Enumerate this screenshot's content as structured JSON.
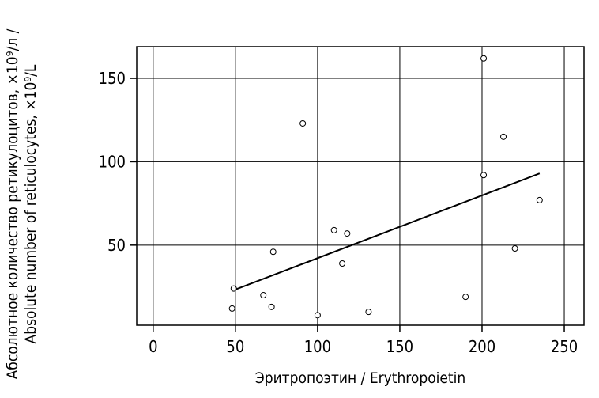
{
  "chart_data": {
    "type": "scatter",
    "title": "",
    "xlabel": "Эритропоэтин / Erythropoietin",
    "ylabel": [
      "Абсолютное количество ретикулоцитов, ×10⁹/л /",
      "Absolute number of reticulocytes, ×10⁹/L"
    ],
    "xlim": [
      -10,
      262
    ],
    "ylim": [
      2,
      169
    ],
    "xticks": [
      0,
      50,
      100,
      150,
      200,
      250
    ],
    "yticks": [
      50,
      100,
      150
    ],
    "xtick_labels": [
      "0",
      "50",
      "100",
      "150",
      "200",
      "250"
    ],
    "ytick_labels": [
      "50",
      "100",
      "150"
    ],
    "grid": true,
    "points": [
      {
        "x": 48,
        "y": 12
      },
      {
        "x": 49,
        "y": 24
      },
      {
        "x": 67,
        "y": 20
      },
      {
        "x": 72,
        "y": 13
      },
      {
        "x": 73,
        "y": 46
      },
      {
        "x": 91,
        "y": 123
      },
      {
        "x": 100,
        "y": 8
      },
      {
        "x": 110,
        "y": 59
      },
      {
        "x": 115,
        "y": 39
      },
      {
        "x": 118,
        "y": 57
      },
      {
        "x": 131,
        "y": 10
      },
      {
        "x": 190,
        "y": 19
      },
      {
        "x": 201,
        "y": 162
      },
      {
        "x": 201,
        "y": 92
      },
      {
        "x": 213,
        "y": 115
      },
      {
        "x": 220,
        "y": 48
      },
      {
        "x": 235,
        "y": 77
      }
    ],
    "trend_line": {
      "x": [
        49,
        235
      ],
      "y": [
        23,
        93
      ]
    }
  }
}
